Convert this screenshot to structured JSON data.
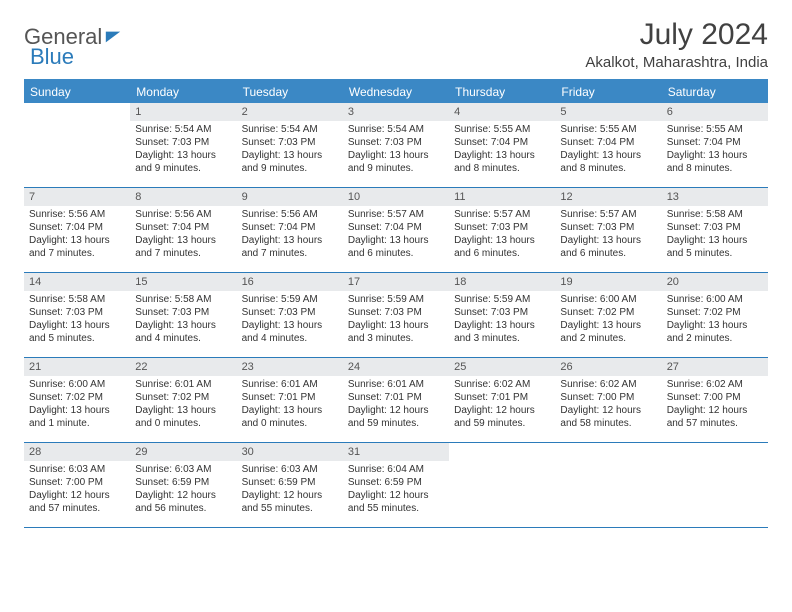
{
  "logo": {
    "text1": "General",
    "text2": "Blue"
  },
  "title": "July 2024",
  "location": "Akalkot, Maharashtra, India",
  "colors": {
    "header_bg": "#3b88c5",
    "border": "#2b7bba",
    "daynum_bg": "#e8eaec",
    "text": "#333333",
    "title": "#414141"
  },
  "day_names": [
    "Sunday",
    "Monday",
    "Tuesday",
    "Wednesday",
    "Thursday",
    "Friday",
    "Saturday"
  ],
  "weeks": [
    [
      {
        "n": "",
        "empty": true
      },
      {
        "n": "1",
        "sunrise": "Sunrise: 5:54 AM",
        "sunset": "Sunset: 7:03 PM",
        "day1": "Daylight: 13 hours",
        "day2": "and 9 minutes."
      },
      {
        "n": "2",
        "sunrise": "Sunrise: 5:54 AM",
        "sunset": "Sunset: 7:03 PM",
        "day1": "Daylight: 13 hours",
        "day2": "and 9 minutes."
      },
      {
        "n": "3",
        "sunrise": "Sunrise: 5:54 AM",
        "sunset": "Sunset: 7:03 PM",
        "day1": "Daylight: 13 hours",
        "day2": "and 9 minutes."
      },
      {
        "n": "4",
        "sunrise": "Sunrise: 5:55 AM",
        "sunset": "Sunset: 7:04 PM",
        "day1": "Daylight: 13 hours",
        "day2": "and 8 minutes."
      },
      {
        "n": "5",
        "sunrise": "Sunrise: 5:55 AM",
        "sunset": "Sunset: 7:04 PM",
        "day1": "Daylight: 13 hours",
        "day2": "and 8 minutes."
      },
      {
        "n": "6",
        "sunrise": "Sunrise: 5:55 AM",
        "sunset": "Sunset: 7:04 PM",
        "day1": "Daylight: 13 hours",
        "day2": "and 8 minutes."
      }
    ],
    [
      {
        "n": "7",
        "sunrise": "Sunrise: 5:56 AM",
        "sunset": "Sunset: 7:04 PM",
        "day1": "Daylight: 13 hours",
        "day2": "and 7 minutes."
      },
      {
        "n": "8",
        "sunrise": "Sunrise: 5:56 AM",
        "sunset": "Sunset: 7:04 PM",
        "day1": "Daylight: 13 hours",
        "day2": "and 7 minutes."
      },
      {
        "n": "9",
        "sunrise": "Sunrise: 5:56 AM",
        "sunset": "Sunset: 7:04 PM",
        "day1": "Daylight: 13 hours",
        "day2": "and 7 minutes."
      },
      {
        "n": "10",
        "sunrise": "Sunrise: 5:57 AM",
        "sunset": "Sunset: 7:04 PM",
        "day1": "Daylight: 13 hours",
        "day2": "and 6 minutes."
      },
      {
        "n": "11",
        "sunrise": "Sunrise: 5:57 AM",
        "sunset": "Sunset: 7:03 PM",
        "day1": "Daylight: 13 hours",
        "day2": "and 6 minutes."
      },
      {
        "n": "12",
        "sunrise": "Sunrise: 5:57 AM",
        "sunset": "Sunset: 7:03 PM",
        "day1": "Daylight: 13 hours",
        "day2": "and 6 minutes."
      },
      {
        "n": "13",
        "sunrise": "Sunrise: 5:58 AM",
        "sunset": "Sunset: 7:03 PM",
        "day1": "Daylight: 13 hours",
        "day2": "and 5 minutes."
      }
    ],
    [
      {
        "n": "14",
        "sunrise": "Sunrise: 5:58 AM",
        "sunset": "Sunset: 7:03 PM",
        "day1": "Daylight: 13 hours",
        "day2": "and 5 minutes."
      },
      {
        "n": "15",
        "sunrise": "Sunrise: 5:58 AM",
        "sunset": "Sunset: 7:03 PM",
        "day1": "Daylight: 13 hours",
        "day2": "and 4 minutes."
      },
      {
        "n": "16",
        "sunrise": "Sunrise: 5:59 AM",
        "sunset": "Sunset: 7:03 PM",
        "day1": "Daylight: 13 hours",
        "day2": "and 4 minutes."
      },
      {
        "n": "17",
        "sunrise": "Sunrise: 5:59 AM",
        "sunset": "Sunset: 7:03 PM",
        "day1": "Daylight: 13 hours",
        "day2": "and 3 minutes."
      },
      {
        "n": "18",
        "sunrise": "Sunrise: 5:59 AM",
        "sunset": "Sunset: 7:03 PM",
        "day1": "Daylight: 13 hours",
        "day2": "and 3 minutes."
      },
      {
        "n": "19",
        "sunrise": "Sunrise: 6:00 AM",
        "sunset": "Sunset: 7:02 PM",
        "day1": "Daylight: 13 hours",
        "day2": "and 2 minutes."
      },
      {
        "n": "20",
        "sunrise": "Sunrise: 6:00 AM",
        "sunset": "Sunset: 7:02 PM",
        "day1": "Daylight: 13 hours",
        "day2": "and 2 minutes."
      }
    ],
    [
      {
        "n": "21",
        "sunrise": "Sunrise: 6:00 AM",
        "sunset": "Sunset: 7:02 PM",
        "day1": "Daylight: 13 hours",
        "day2": "and 1 minute."
      },
      {
        "n": "22",
        "sunrise": "Sunrise: 6:01 AM",
        "sunset": "Sunset: 7:02 PM",
        "day1": "Daylight: 13 hours",
        "day2": "and 0 minutes."
      },
      {
        "n": "23",
        "sunrise": "Sunrise: 6:01 AM",
        "sunset": "Sunset: 7:01 PM",
        "day1": "Daylight: 13 hours",
        "day2": "and 0 minutes."
      },
      {
        "n": "24",
        "sunrise": "Sunrise: 6:01 AM",
        "sunset": "Sunset: 7:01 PM",
        "day1": "Daylight: 12 hours",
        "day2": "and 59 minutes."
      },
      {
        "n": "25",
        "sunrise": "Sunrise: 6:02 AM",
        "sunset": "Sunset: 7:01 PM",
        "day1": "Daylight: 12 hours",
        "day2": "and 59 minutes."
      },
      {
        "n": "26",
        "sunrise": "Sunrise: 6:02 AM",
        "sunset": "Sunset: 7:00 PM",
        "day1": "Daylight: 12 hours",
        "day2": "and 58 minutes."
      },
      {
        "n": "27",
        "sunrise": "Sunrise: 6:02 AM",
        "sunset": "Sunset: 7:00 PM",
        "day1": "Daylight: 12 hours",
        "day2": "and 57 minutes."
      }
    ],
    [
      {
        "n": "28",
        "sunrise": "Sunrise: 6:03 AM",
        "sunset": "Sunset: 7:00 PM",
        "day1": "Daylight: 12 hours",
        "day2": "and 57 minutes."
      },
      {
        "n": "29",
        "sunrise": "Sunrise: 6:03 AM",
        "sunset": "Sunset: 6:59 PM",
        "day1": "Daylight: 12 hours",
        "day2": "and 56 minutes."
      },
      {
        "n": "30",
        "sunrise": "Sunrise: 6:03 AM",
        "sunset": "Sunset: 6:59 PM",
        "day1": "Daylight: 12 hours",
        "day2": "and 55 minutes."
      },
      {
        "n": "31",
        "sunrise": "Sunrise: 6:04 AM",
        "sunset": "Sunset: 6:59 PM",
        "day1": "Daylight: 12 hours",
        "day2": "and 55 minutes."
      },
      {
        "n": "",
        "empty": true
      },
      {
        "n": "",
        "empty": true
      },
      {
        "n": "",
        "empty": true
      }
    ]
  ]
}
